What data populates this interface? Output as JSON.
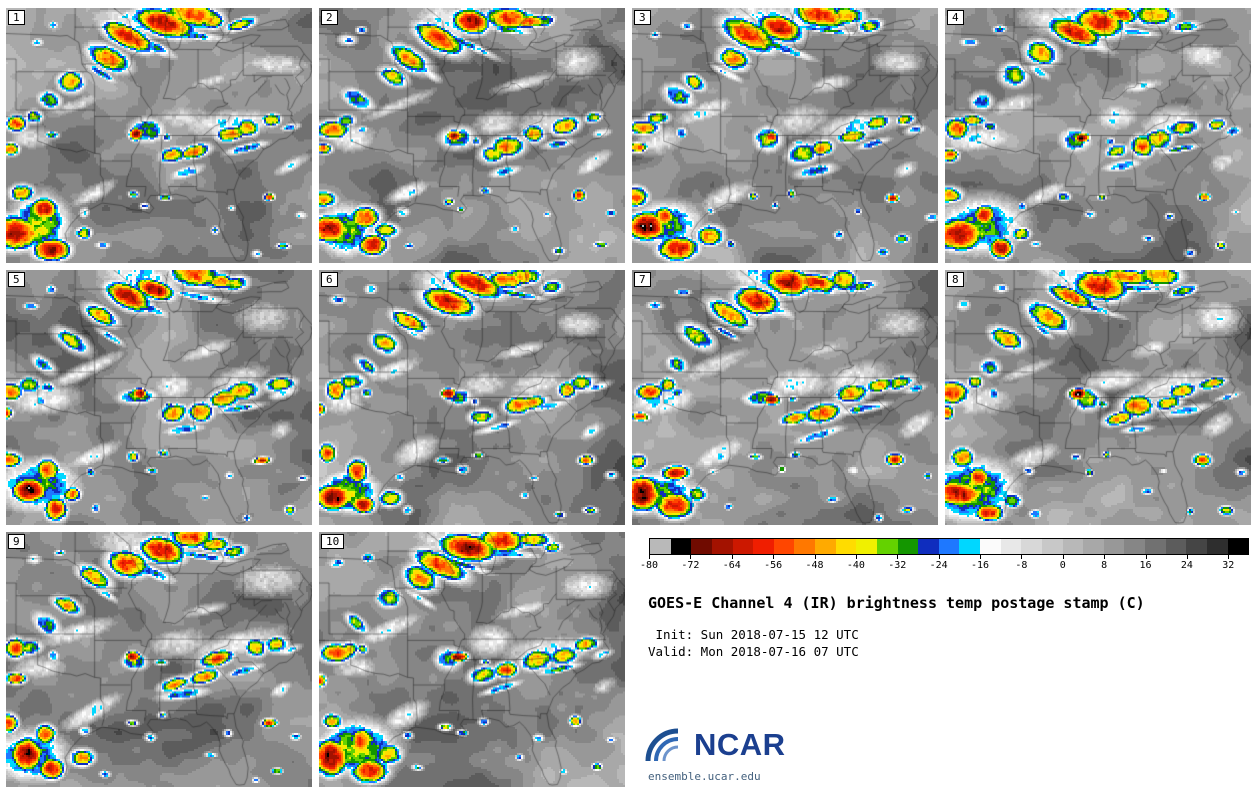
{
  "panels": [
    {
      "label": "1"
    },
    {
      "label": "2"
    },
    {
      "label": "3"
    },
    {
      "label": "4"
    },
    {
      "label": "5"
    },
    {
      "label": "6"
    },
    {
      "label": "7"
    },
    {
      "label": "8"
    },
    {
      "label": "9"
    },
    {
      "label": "10"
    }
  ],
  "colorbar": {
    "tmin": -80,
    "tmax": 36,
    "step": 4,
    "tick_labels": [
      "-80",
      "-72",
      "-64",
      "-56",
      "-48",
      "-40",
      "-32",
      "-24",
      "-16",
      "-8",
      "0",
      "8",
      "16",
      "24",
      "32"
    ],
    "colors": [
      "#b9b9b9",
      "#000000",
      "#700b00",
      "#a31200",
      "#cc1800",
      "#f01e00",
      "#ff4600",
      "#ff7800",
      "#ffaa00",
      "#ffdc00",
      "#f0f000",
      "#64d200",
      "#149600",
      "#0f2dbe",
      "#1e78ff",
      "#00d7ff",
      "#fbfbfb",
      "#e8e8e8",
      "#d8d8d8",
      "#c8c8c8",
      "#b8b8b8",
      "#a8a8a8",
      "#989898",
      "#868686",
      "#717171",
      "#5c5c5c",
      "#454545",
      "#2e2e2e",
      "#000000"
    ]
  },
  "info": {
    "title": "GOES-E Channel 4 (IR) brightness temp postage stamp (C)",
    "init_line": " Init: Sun 2018-07-15 12 UTC",
    "valid_line": "Valid: Mon 2018-07-16 07 UTC"
  },
  "logo": {
    "text": "NCAR",
    "url_text": "ensemble.ucar.edu",
    "accent": "#1d4f91",
    "text_color": "#1b3f8f"
  },
  "chart_data": {
    "type": "heatmap",
    "title": "GOES-E Channel 4 (IR) brightness temp postage stamp (C)",
    "panel_count": 10,
    "panel_labels": [
      "1",
      "2",
      "3",
      "4",
      "5",
      "6",
      "7",
      "8",
      "9",
      "10"
    ],
    "init": "Sun 2018-07-15 12 UTC",
    "valid": "Mon 2018-07-16 07 UTC",
    "colorbar_ticks": [
      -80,
      -72,
      -64,
      -56,
      -48,
      -40,
      -32,
      -24,
      -16,
      -8,
      0,
      8,
      16,
      24,
      32
    ],
    "colorbar_unit": "C",
    "legend_position": "bottom-right",
    "grid": {
      "cols": 4,
      "rows": 3
    }
  }
}
